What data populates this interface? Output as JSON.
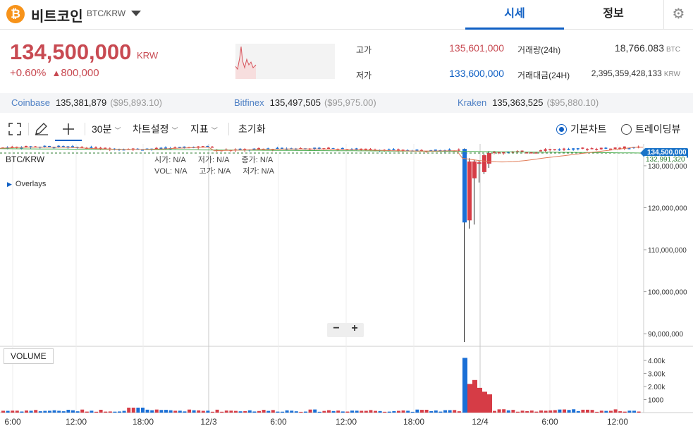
{
  "header": {
    "coin_symbol": "₿",
    "coin_name": "비트코인",
    "pair": "BTC/KRW",
    "tabs": [
      {
        "label": "시세",
        "active": true
      },
      {
        "label": "정보",
        "active": false
      }
    ]
  },
  "price": {
    "current": "134,500,000",
    "unit": "KRW",
    "change_pct": "+0.60%",
    "change_arrow": "▲",
    "change_amount": "800,000"
  },
  "stats": {
    "high_label": "고가",
    "high_value": "135,601,000",
    "low_label": "저가",
    "low_value": "133,600,000",
    "volume_label": "거래량(24h)",
    "volume_value": "18,766.083",
    "volume_unit": "BTC",
    "amount_label": "거래대금(24H)",
    "amount_value": "2,395,359,428,133",
    "amount_unit": "KRW"
  },
  "exchanges": [
    {
      "name": "Coinbase",
      "krw": "135,381,879",
      "usd": "($95,893.10)"
    },
    {
      "name": "Bitfinex",
      "krw": "135,497,505",
      "usd": "($95,975.00)"
    },
    {
      "name": "Kraken",
      "krw": "135,363,525",
      "usd": "($95,880.10)"
    }
  ],
  "toolbar": {
    "interval": "30분",
    "chart_settings": "차트설정",
    "indicators": "지표",
    "reset": "초기화",
    "view_basic": "기본차트",
    "view_trading": "트레이딩뷰",
    "selected_view": "basic"
  },
  "chart": {
    "pair_label": "BTC/KRW",
    "ohlc_row1": [
      {
        "k": "시가:",
        "v": "N/A"
      },
      {
        "k": "저가:",
        "v": "N/A"
      },
      {
        "k": "종가:",
        "v": "N/A"
      }
    ],
    "ohlc_row2": [
      {
        "k": "VOL:",
        "v": "N/A"
      },
      {
        "k": "고가:",
        "v": "N/A"
      },
      {
        "k": "저가:",
        "v": "N/A"
      }
    ],
    "overlays_label": "Overlays",
    "zoom_out": "−",
    "zoom_in": "+",
    "volume_label": "VOLUME",
    "current_price_tag": "134,500,000",
    "ma_price_tag": "132,991,320"
  },
  "chart_data": {
    "type": "candlestick",
    "y_ticks": [
      "130,000,000",
      "120,000,000",
      "110,000,000",
      "100,000,000",
      "90,000,000"
    ],
    "y_tick_values": [
      130000000,
      120000000,
      110000000,
      100000000,
      90000000
    ],
    "ylim": [
      87000000,
      135200000
    ],
    "x_ticks": [
      "6:00",
      "12:00",
      "18:00",
      "12/3",
      "6:00",
      "12:00",
      "18:00",
      "12/4",
      "6:00",
      "12:00"
    ],
    "volume_ticks": [
      "4.00k",
      "3.00k",
      "2.00k",
      "1000"
    ],
    "volume_tick_values": [
      4000,
      3000,
      2000,
      1000
    ],
    "volume_max": 4600,
    "colors": {
      "up": "#d63c46",
      "down": "#1a6fd6",
      "ma_long": "#4caf50",
      "ma_short": "#e07b56",
      "accent": "#1060c4"
    },
    "spike": [
      {
        "o": 134000000,
        "h": 134100000,
        "l": 88000000,
        "c": 116500000,
        "v": 4200,
        "dir": "down"
      },
      {
        "o": 117000000,
        "h": 131800000,
        "l": 115000000,
        "c": 131000000,
        "v": 2200,
        "dir": "up"
      },
      {
        "o": 127000000,
        "h": 131500000,
        "l": 116000000,
        "c": 131000000,
        "v": 2500,
        "dir": "up"
      },
      {
        "o": 130500000,
        "h": 131200000,
        "l": 126000000,
        "c": 130800000,
        "v": 1900,
        "dir": "up"
      },
      {
        "o": 128500000,
        "h": 132800000,
        "l": 128000000,
        "c": 132500000,
        "v": 1600,
        "dir": "up"
      },
      {
        "o": 130500000,
        "h": 133500000,
        "l": 129500000,
        "c": 133000000,
        "v": 1400,
        "dir": "up"
      }
    ]
  }
}
